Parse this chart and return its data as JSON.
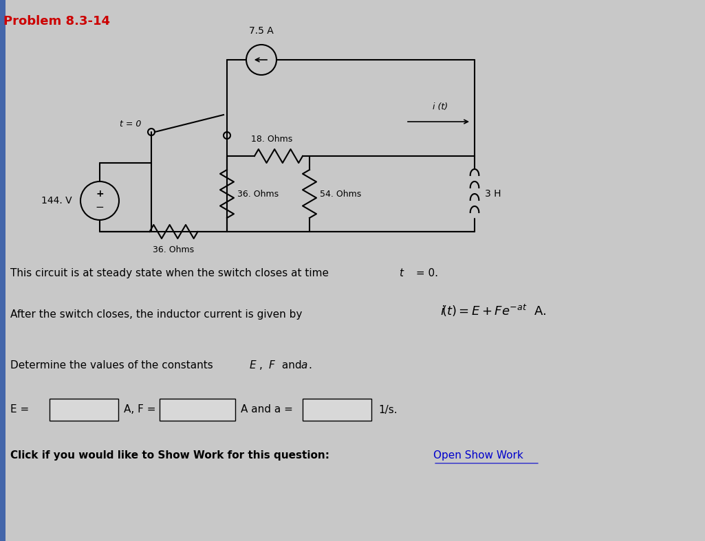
{
  "title": "Problem 8.3-14",
  "title_color": "#cc0000",
  "bg_color": "#c8c8c8",
  "circuit": {
    "current_source_label": "7.5 A",
    "R1_label": "18. Ohms",
    "R2_label": "36. Ohms",
    "R3_label": "54. Ohms",
    "R4_label": "36. Ohms",
    "V_label": "144. V",
    "L_label": "3 H",
    "i_label": "i (t)",
    "switch_label": "t = 0"
  },
  "text1": "This circuit is at steady state when the switch closes at time ",
  "text1b": "t",
  "text1c": " = 0.",
  "text2_pre": "After the switch closes, the inductor current is given by ",
  "text3": "Determine the values of the constants ",
  "text3b": "E",
  "text3c": ", ",
  "text3d": "F",
  "text3e": " and ",
  "text3f": "a",
  "text3g": ".",
  "label_E": "E =",
  "label_F": "A, F =",
  "label_a": "A and a =",
  "label_unit": "1/s.",
  "click_text": "Click if you would like to Show Work for this question:",
  "open_work": "Open Show Work",
  "font_size_title": 13,
  "font_size_body": 11,
  "font_size_label": 10
}
